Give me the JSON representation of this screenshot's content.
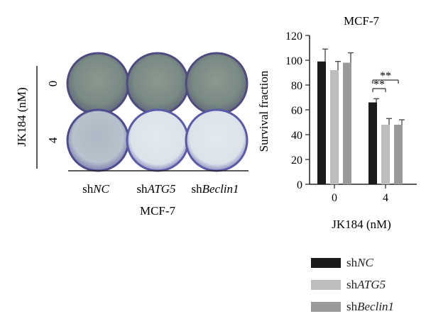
{
  "plates": {
    "ylabel": "JK184 (nM)",
    "rows": [
      "0",
      "4"
    ],
    "columns": [
      {
        "prefix": "sh",
        "gene": "NC"
      },
      {
        "prefix": "sh",
        "gene": "ATG5"
      },
      {
        "prefix": "sh",
        "gene": "Beclin1"
      }
    ],
    "cell_line": "MCF-7"
  },
  "chart_data": {
    "type": "bar",
    "title": "MCF-7",
    "xlabel": "JK184 (nM)",
    "ylabel": "Survival fraction",
    "categories": [
      "0",
      "4"
    ],
    "ylim": [
      0,
      120
    ],
    "yticks": [
      0,
      20,
      40,
      60,
      80,
      100,
      120
    ],
    "series": [
      {
        "name": "shNC",
        "values": [
          99,
          66
        ],
        "errors": [
          10,
          3
        ],
        "color": "#1a1a1a"
      },
      {
        "name": "shATG5",
        "values": [
          92,
          48
        ],
        "errors": [
          7,
          5
        ],
        "color": "#bdbdbd"
      },
      {
        "name": "shBeclin1",
        "values": [
          98,
          48
        ],
        "errors": [
          8,
          4
        ],
        "color": "#9a9a9a"
      }
    ],
    "annotations": [
      {
        "text": "**",
        "category": "4",
        "from_series": "shNC",
        "to_series": "shATG5"
      },
      {
        "text": "**",
        "category": "4",
        "from_series": "shNC",
        "to_series": "shBeclin1"
      }
    ],
    "legend": {
      "placement": "bottom-right",
      "entries": [
        {
          "prefix": "sh",
          "gene": "NC",
          "color": "#1a1a1a"
        },
        {
          "prefix": "sh",
          "gene": "ATG5",
          "color": "#bdbdbd"
        },
        {
          "prefix": "sh",
          "gene": "Beclin1",
          "color": "#9a9a9a"
        }
      ]
    }
  }
}
